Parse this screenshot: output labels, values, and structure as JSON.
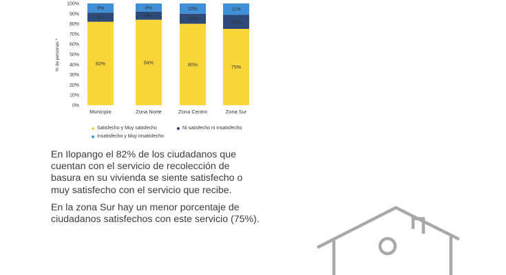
{
  "chart_data": {
    "type": "bar",
    "stacked": true,
    "categories": [
      "Municipio",
      "Zona Norte",
      "Zona Centro",
      "Zona Sur"
    ],
    "series": [
      {
        "name": "Satisfecho y Muy satisfecho",
        "values": [
          82,
          84,
          80,
          75
        ],
        "labels": [
          "82%",
          "84%",
          "80%",
          "75%"
        ],
        "color": "#fbd63a"
      },
      {
        "name": "Ni satisfecho ni insatisfecho",
        "values": [
          9,
          8,
          10,
          14
        ],
        "labels": [
          "9%",
          "8%",
          "10%",
          "14%"
        ],
        "color": "#2d4a78"
      },
      {
        "name": "Insatisfecho y Muy insatisfecho",
        "values": [
          9,
          8,
          10,
          11
        ],
        "labels": [
          "9%",
          "8%",
          "10%",
          "11%"
        ],
        "color": "#3f90d6"
      }
    ],
    "ylabel": "% de personas *",
    "ylim": [
      0,
      100
    ],
    "yticks": [
      "0%",
      "10%",
      "20%",
      "30%",
      "40%",
      "50%",
      "60%",
      "70%",
      "80%",
      "90%",
      "100%"
    ],
    "grid": false,
    "legend_position": "bottom"
  },
  "text": {
    "paragraph1": [
      "En Ilopango el 82% de los ciudadanos que",
      "cuentan con el servicio de recolección de",
      "basura en su vivienda se siente satisfecho o",
      "muy satisfecho con el servicio que recibe."
    ],
    "paragraph2": [
      "En la zona Sur hay un menor porcentaje de",
      "ciudadanos satisfechos con este servicio (75%)."
    ]
  },
  "icons": {
    "house": "house-icon"
  }
}
